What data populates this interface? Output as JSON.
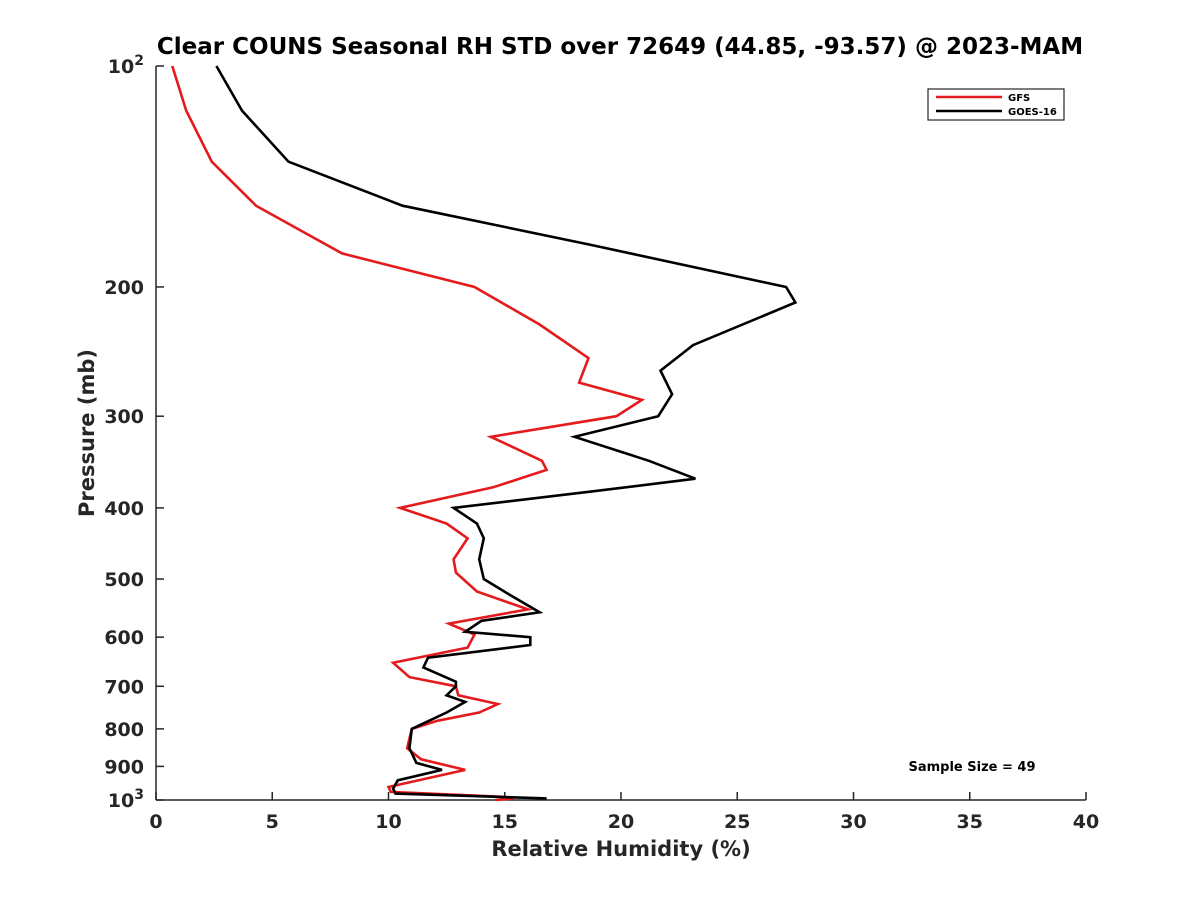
{
  "chart_data": {
    "type": "line",
    "title": "Clear COUNS Seasonal RH STD over 72649 (44.85, -93.57) @ 2023-MAM",
    "xlabel": "Relative Humidity (%)",
    "ylabel": "Pressure (mb)",
    "xlim": [
      0,
      40
    ],
    "ylim": [
      100,
      1000
    ],
    "yscale": "log",
    "yreversed": true,
    "x_ticks": [
      "0",
      "5",
      "10",
      "15",
      "20",
      "25",
      "30",
      "35",
      "40"
    ],
    "y_ticks": [
      {
        "value": 100,
        "base": "10",
        "exp": "2"
      },
      {
        "value": 200,
        "label": "200"
      },
      {
        "value": 300,
        "label": "300"
      },
      {
        "value": 400,
        "label": "400"
      },
      {
        "value": 500,
        "label": "500"
      },
      {
        "value": 600,
        "label": "600"
      },
      {
        "value": 700,
        "label": "700"
      },
      {
        "value": 800,
        "label": "800"
      },
      {
        "value": 900,
        "label": "900"
      },
      {
        "value": 1000,
        "base": "10",
        "exp": "3"
      }
    ],
    "legend": {
      "location": "top-right",
      "entries": [
        "GFS",
        "GOES-16"
      ]
    },
    "annotation": "Sample Size = 49",
    "series": [
      {
        "name": "GFS",
        "color": "#e41a1c",
        "points": [
          [
            0.7,
            100
          ],
          [
            1.3,
            115
          ],
          [
            2.4,
            135
          ],
          [
            4.3,
            155
          ],
          [
            8.0,
            180
          ],
          [
            13.7,
            200
          ],
          [
            16.5,
            225
          ],
          [
            18.6,
            250
          ],
          [
            18.2,
            270
          ],
          [
            20.9,
            285
          ],
          [
            19.8,
            300
          ],
          [
            14.4,
            320
          ],
          [
            16.6,
            345
          ],
          [
            16.8,
            355
          ],
          [
            14.5,
            375
          ],
          [
            10.5,
            400
          ],
          [
            12.5,
            420
          ],
          [
            13.4,
            440
          ],
          [
            12.8,
            470
          ],
          [
            12.9,
            490
          ],
          [
            13.8,
            520
          ],
          [
            16.0,
            550
          ],
          [
            12.6,
            575
          ],
          [
            13.7,
            595
          ],
          [
            13.4,
            620
          ],
          [
            10.2,
            650
          ],
          [
            10.9,
            680
          ],
          [
            12.9,
            700
          ],
          [
            13.0,
            720
          ],
          [
            14.7,
            740
          ],
          [
            13.9,
            760
          ],
          [
            12.1,
            780
          ],
          [
            11.0,
            800
          ],
          [
            10.8,
            850
          ],
          [
            11.4,
            880
          ],
          [
            13.3,
            910
          ],
          [
            10.0,
            960
          ],
          [
            10.1,
            975
          ],
          [
            14.9,
            990
          ],
          [
            15.4,
            995
          ],
          [
            14.6,
            1000
          ]
        ]
      },
      {
        "name": "GOES-16",
        "color": "#000000",
        "points": [
          [
            2.6,
            100
          ],
          [
            3.7,
            115
          ],
          [
            5.7,
            135
          ],
          [
            10.6,
            155
          ],
          [
            18.6,
            175
          ],
          [
            27.1,
            200
          ],
          [
            27.5,
            210
          ],
          [
            23.1,
            240
          ],
          [
            21.7,
            260
          ],
          [
            22.2,
            280
          ],
          [
            21.6,
            300
          ],
          [
            18.0,
            320
          ],
          [
            21.2,
            345
          ],
          [
            23.2,
            365
          ],
          [
            18.7,
            380
          ],
          [
            12.8,
            400
          ],
          [
            13.8,
            420
          ],
          [
            14.1,
            440
          ],
          [
            13.9,
            470
          ],
          [
            14.1,
            500
          ],
          [
            15.2,
            525
          ],
          [
            16.5,
            555
          ],
          [
            14.0,
            570
          ],
          [
            13.3,
            590
          ],
          [
            16.1,
            600
          ],
          [
            16.1,
            615
          ],
          [
            11.7,
            640
          ],
          [
            11.5,
            660
          ],
          [
            12.9,
            690
          ],
          [
            12.9,
            700
          ],
          [
            12.5,
            720
          ],
          [
            13.3,
            735
          ],
          [
            12.5,
            760
          ],
          [
            11.0,
            800
          ],
          [
            10.9,
            850
          ],
          [
            11.2,
            890
          ],
          [
            12.3,
            910
          ],
          [
            10.4,
            940
          ],
          [
            10.2,
            965
          ],
          [
            10.3,
            980
          ],
          [
            16.8,
            995
          ]
        ]
      }
    ]
  }
}
